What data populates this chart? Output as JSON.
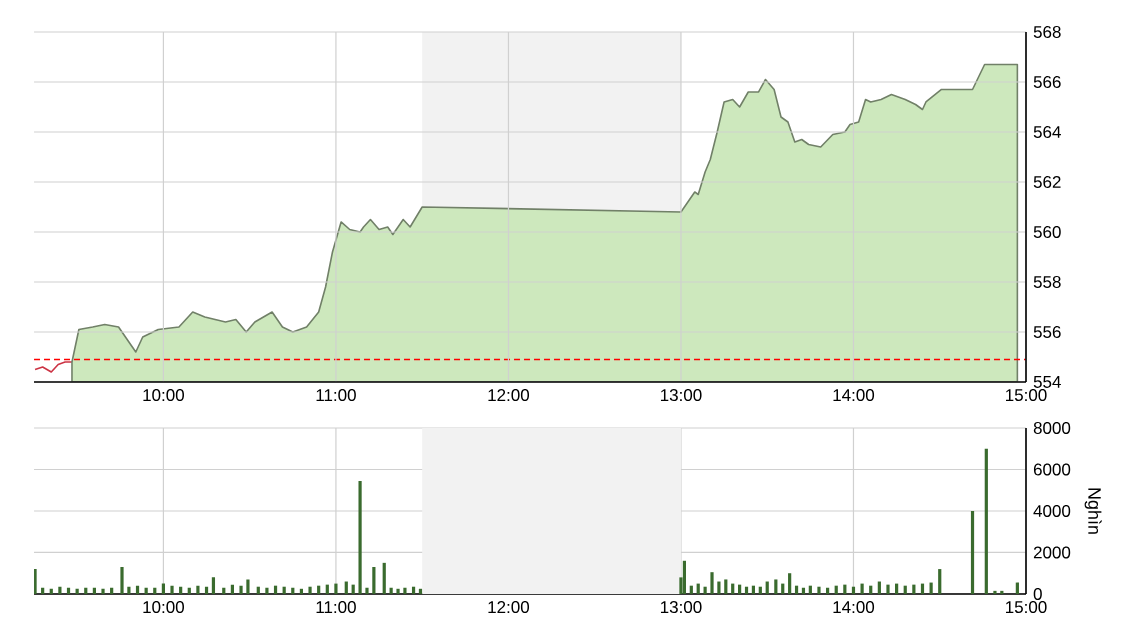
{
  "chart_data": [
    {
      "type": "area",
      "xlim": [
        9.25,
        15
      ],
      "ylim": [
        554,
        568
      ],
      "xticks": [
        {
          "value": 10,
          "label": "10:00"
        },
        {
          "value": 11,
          "label": "11:00"
        },
        {
          "value": 12,
          "label": "12:00"
        },
        {
          "value": 13,
          "label": "13:00"
        },
        {
          "value": 14,
          "label": "14:00"
        },
        {
          "value": 15,
          "label": "15:00"
        }
      ],
      "yticks": [
        554,
        556,
        558,
        560,
        562,
        564,
        566,
        568
      ],
      "grid": true,
      "bands": [
        {
          "axis": "x",
          "from": 11.5,
          "to": 13,
          "color": "#f2f2f2"
        }
      ],
      "ref_lines": [
        {
          "axis": "y",
          "value": 554.9,
          "color": "#ff0000",
          "line_style": "dashed"
        }
      ],
      "series": [
        {
          "type": "line",
          "color": "#cc3344",
          "x": [
            9.256,
            9.3,
            9.35,
            9.39,
            9.43,
            9.47
          ],
          "values": [
            554.5,
            554.6,
            554.4,
            554.7,
            554.8,
            554.8
          ]
        },
        {
          "type": "area",
          "color": "#cde8bd",
          "x": [
            9.47,
            9.51,
            9.59,
            9.66,
            9.74,
            9.8,
            9.84,
            9.88,
            9.97,
            10.09,
            10.17,
            10.24,
            10.36,
            10.42,
            10.48,
            10.53,
            10.63,
            10.69,
            10.75,
            10.83,
            10.9,
            10.94,
            10.98,
            11.03,
            11.08,
            11.14,
            11.16,
            11.2,
            11.25,
            11.3,
            11.33,
            11.39,
            11.43,
            11.5,
            13.0,
            13.04,
            13.08,
            13.1,
            13.14,
            13.17,
            13.21,
            13.25,
            13.3,
            13.34,
            13.39,
            13.45,
            13.49,
            13.54,
            13.58,
            13.62,
            13.66,
            13.7,
            13.74,
            13.81,
            13.88,
            13.95,
            13.98,
            14.03,
            14.07,
            14.1,
            14.16,
            14.22,
            14.3,
            14.36,
            14.4,
            14.42,
            14.51,
            14.69,
            14.76,
            14.95
          ],
          "values": [
            554.8,
            556.1,
            556.2,
            556.3,
            556.2,
            555.6,
            555.2,
            555.8,
            556.1,
            556.2,
            556.8,
            556.6,
            556.4,
            556.5,
            556.0,
            556.4,
            556.8,
            556.2,
            556.0,
            556.2,
            556.8,
            557.8,
            559.2,
            560.4,
            560.1,
            560.0,
            560.2,
            560.5,
            560.1,
            560.2,
            559.9,
            560.5,
            560.2,
            561.0,
            560.8,
            561.2,
            561.6,
            561.5,
            562.4,
            562.9,
            564.0,
            565.2,
            565.3,
            565.0,
            565.6,
            565.6,
            566.1,
            565.7,
            564.6,
            564.4,
            563.6,
            563.7,
            563.5,
            563.4,
            563.9,
            564.0,
            564.3,
            564.4,
            565.3,
            565.2,
            565.3,
            565.5,
            565.3,
            565.1,
            564.9,
            565.2,
            565.7,
            565.7,
            566.7,
            566.7
          ]
        }
      ]
    },
    {
      "type": "bar",
      "xlim": [
        9.25,
        15
      ],
      "ylim": [
        0,
        8000
      ],
      "y2label": "Nghìn",
      "xticks": [
        {
          "value": 10,
          "label": "10:00"
        },
        {
          "value": 11,
          "label": "11:00"
        },
        {
          "value": 12,
          "label": "12:00"
        },
        {
          "value": 13,
          "label": "13:00"
        },
        {
          "value": 14,
          "label": "14:00"
        },
        {
          "value": 15,
          "label": "15:00"
        }
      ],
      "yticks": [
        0,
        2000,
        4000,
        6000,
        8000
      ],
      "grid": true,
      "bands": [
        {
          "axis": "x",
          "from": 11.5,
          "to": 13,
          "color": "#f2f2f2"
        }
      ],
      "series": [
        {
          "color": "#3a6b2e",
          "x": [
            9.256,
            9.3,
            9.35,
            9.4,
            9.45,
            9.5,
            9.55,
            9.6,
            9.65,
            9.7,
            9.76,
            9.8,
            9.85,
            9.9,
            9.95,
            10.0,
            10.05,
            10.1,
            10.15,
            10.2,
            10.25,
            10.29,
            10.35,
            10.4,
            10.45,
            10.49,
            10.55,
            10.6,
            10.65,
            10.7,
            10.75,
            10.8,
            10.85,
            10.9,
            10.95,
            11.0,
            11.06,
            11.1,
            11.14,
            11.18,
            11.22,
            11.28,
            11.32,
            11.36,
            11.4,
            11.45,
            11.49,
            13.0,
            13.02,
            13.06,
            13.1,
            13.14,
            13.18,
            13.22,
            13.26,
            13.3,
            13.34,
            13.38,
            13.42,
            13.46,
            13.5,
            13.55,
            13.59,
            13.63,
            13.67,
            13.71,
            13.75,
            13.8,
            13.85,
            13.9,
            13.95,
            14.0,
            14.05,
            14.1,
            14.15,
            14.2,
            14.25,
            14.3,
            14.35,
            14.4,
            14.45,
            14.5,
            14.69,
            14.77,
            14.82,
            14.86,
            14.95
          ],
          "values": [
            1200,
            300,
            250,
            350,
            300,
            250,
            300,
            300,
            250,
            300,
            1300,
            350,
            400,
            300,
            300,
            500,
            400,
            350,
            300,
            400,
            350,
            800,
            300,
            450,
            400,
            700,
            350,
            300,
            400,
            350,
            300,
            250,
            350,
            400,
            450,
            500,
            600,
            450,
            5450,
            300,
            1300,
            1500,
            300,
            250,
            300,
            350,
            250,
            800,
            1600,
            400,
            500,
            350,
            1050,
            600,
            700,
            500,
            450,
            350,
            400,
            350,
            600,
            700,
            500,
            1000,
            400,
            300,
            400,
            350,
            300,
            400,
            450,
            350,
            500,
            400,
            600,
            450,
            500,
            400,
            450,
            500,
            550,
            1200,
            4000,
            7000,
            150,
            150,
            550
          ]
        }
      ]
    }
  ]
}
